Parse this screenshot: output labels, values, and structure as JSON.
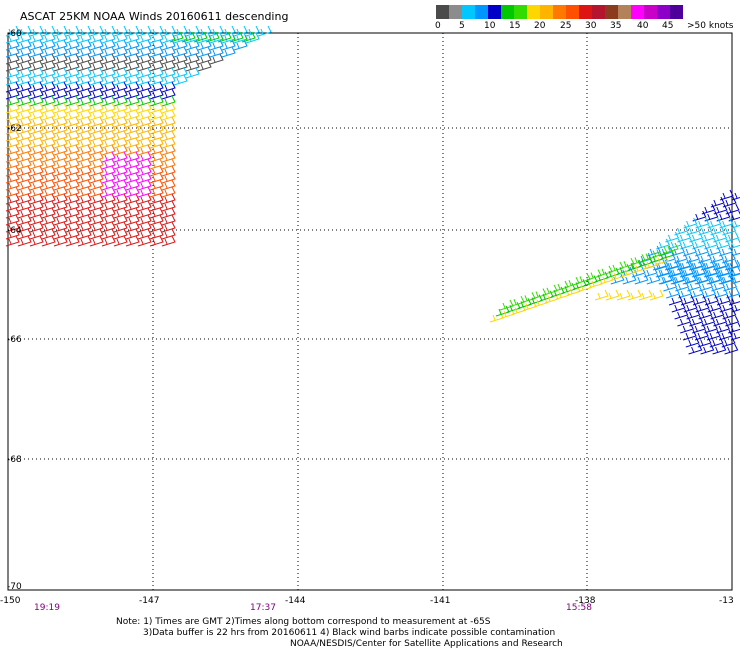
{
  "title": "ASCAT 25KM NOAA Winds 20160611 descending",
  "color_scale": {
    "colors": [
      "#4b4b4b",
      "#8c8c8c",
      "#00c8ff",
      "#0096ff",
      "#0000c8",
      "#00c800",
      "#32dc00",
      "#ffd700",
      "#ffb400",
      "#ff7800",
      "#ff5000",
      "#dc1414",
      "#b4142d",
      "#8c3c1e",
      "#b4825a",
      "#ff00ff",
      "#c800c8",
      "#8c00c8",
      "#50009a"
    ],
    "labels": [
      "0",
      "5",
      "10",
      "15",
      "20",
      "25",
      "30",
      "35",
      "40",
      "45",
      ">50 knots"
    ]
  },
  "axes": {
    "lat_labels": [
      "-60",
      "-62",
      "-64",
      "-66",
      "-68",
      "-70"
    ],
    "lon_labels": [
      "-150",
      "-147",
      "-144",
      "-141",
      "-138",
      "-13"
    ]
  },
  "times": [
    "19:19",
    "17:37",
    "15:58"
  ],
  "notes": [
    "Note: 1) Times are GMT 2)Times along bottom correspond to measurement at -65S",
    "3)Data buffer is 22 hrs from 20160611 4) Black wind barbs indicate possible contamination",
    "NOAA/NESDIS/Center for Satellite Applications and Research"
  ]
}
